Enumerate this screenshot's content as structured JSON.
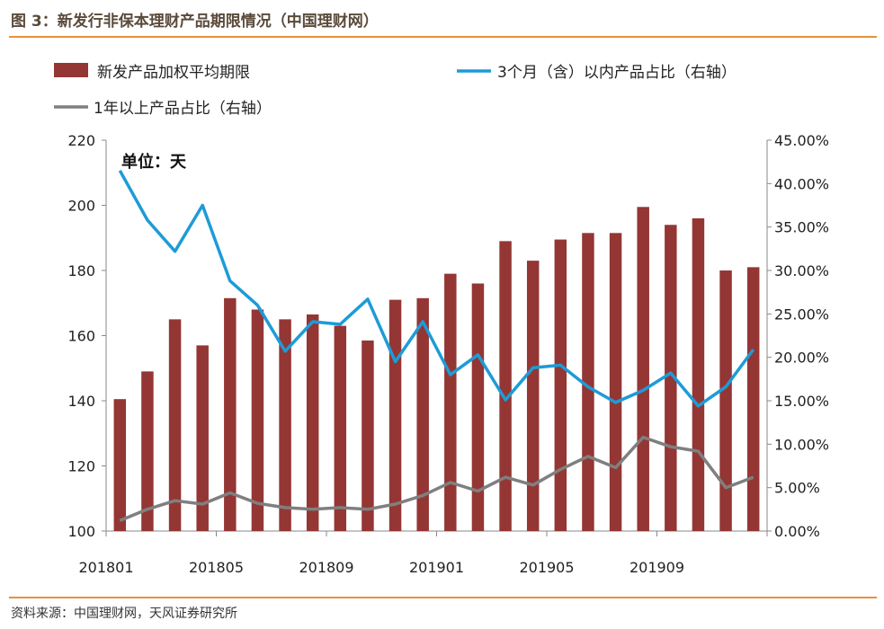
{
  "figure_title": "图 3：新发行非保本理财产品期限情况（中国理财网）",
  "source": "资料来源：中国理财网，天风证券研究所",
  "colors": {
    "bars": "#943634",
    "line_short": "#1e9bd7",
    "line_long": "#7f7f7f",
    "accent_rule": "#e8913a"
  },
  "chart_data": {
    "type": "bar",
    "title": "",
    "unit_label": "单位：天",
    "legend_placement": "top",
    "grid": false,
    "categories": [
      "201801",
      "201802",
      "201803",
      "201804",
      "201805",
      "201806",
      "201807",
      "201808",
      "201809",
      "201810",
      "201811",
      "201812",
      "201901",
      "201902",
      "201903",
      "201904",
      "201905",
      "201906",
      "201907",
      "201908",
      "201909",
      "201910",
      "201911",
      "201912"
    ],
    "x_tick_labels": [
      "201801",
      "201805",
      "201809",
      "201901",
      "201905",
      "201909"
    ],
    "left_axis": {
      "ylim": [
        100,
        220
      ],
      "ticks": [
        "100",
        "120",
        "140",
        "160",
        "180",
        "200",
        "220"
      ]
    },
    "right_axis": {
      "ylim": [
        0,
        45
      ],
      "ticks": [
        "0.00%",
        "5.00%",
        "10.00%",
        "15.00%",
        "20.00%",
        "25.00%",
        "30.00%",
        "35.00%",
        "40.00%",
        "45.00%"
      ]
    },
    "series": [
      {
        "name": "新发产品加权平均期限",
        "type": "bar",
        "axis": "left",
        "values": [
          140.5,
          149,
          165,
          157,
          171.5,
          168,
          165,
          166.5,
          163,
          158.5,
          171,
          171.5,
          179,
          176,
          189,
          183,
          189.5,
          191.5,
          191.5,
          199.5,
          194,
          196,
          180,
          181
        ]
      },
      {
        "name": "3个月（含）以内产品占比（右轴）",
        "type": "line",
        "axis": "right",
        "values": [
          41.5,
          35.8,
          32.2,
          37.5,
          28.8,
          26,
          20.7,
          24.1,
          23.8,
          26.7,
          19.5,
          24.1,
          18,
          20.3,
          15.1,
          18.8,
          19.1,
          16.6,
          14.8,
          16.2,
          18.2,
          14.4,
          16.6,
          20.9
        ]
      },
      {
        "name": "1年以上产品占比（右轴）",
        "type": "line",
        "axis": "right",
        "values": [
          1.2,
          2.5,
          3.5,
          3.1,
          4.4,
          3.2,
          2.7,
          2.5,
          2.7,
          2.5,
          3.1,
          4.1,
          5.6,
          4.6,
          6.2,
          5.3,
          7.1,
          8.6,
          7.3,
          10.8,
          9.7,
          9.2,
          5,
          6.2
        ]
      }
    ]
  }
}
